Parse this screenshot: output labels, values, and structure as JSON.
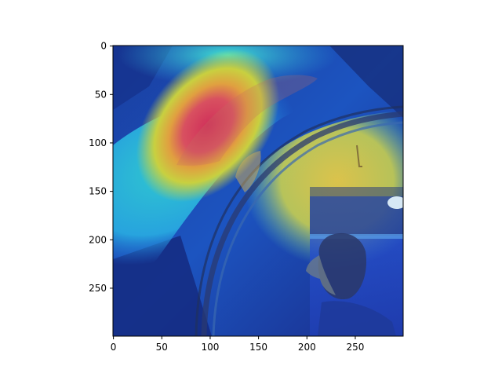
{
  "figure": {
    "x_axis": {
      "range": [
        0,
        299
      ],
      "ticks": [
        0,
        50,
        100,
        150,
        200,
        250
      ]
    },
    "y_axis": {
      "range": [
        0,
        299
      ],
      "ticks": [
        0,
        50,
        100,
        150,
        200,
        250
      ],
      "inverted": true
    },
    "image": {
      "description_kind": "attention heatmap overlay on photo",
      "colormap": "jet"
    }
  }
}
